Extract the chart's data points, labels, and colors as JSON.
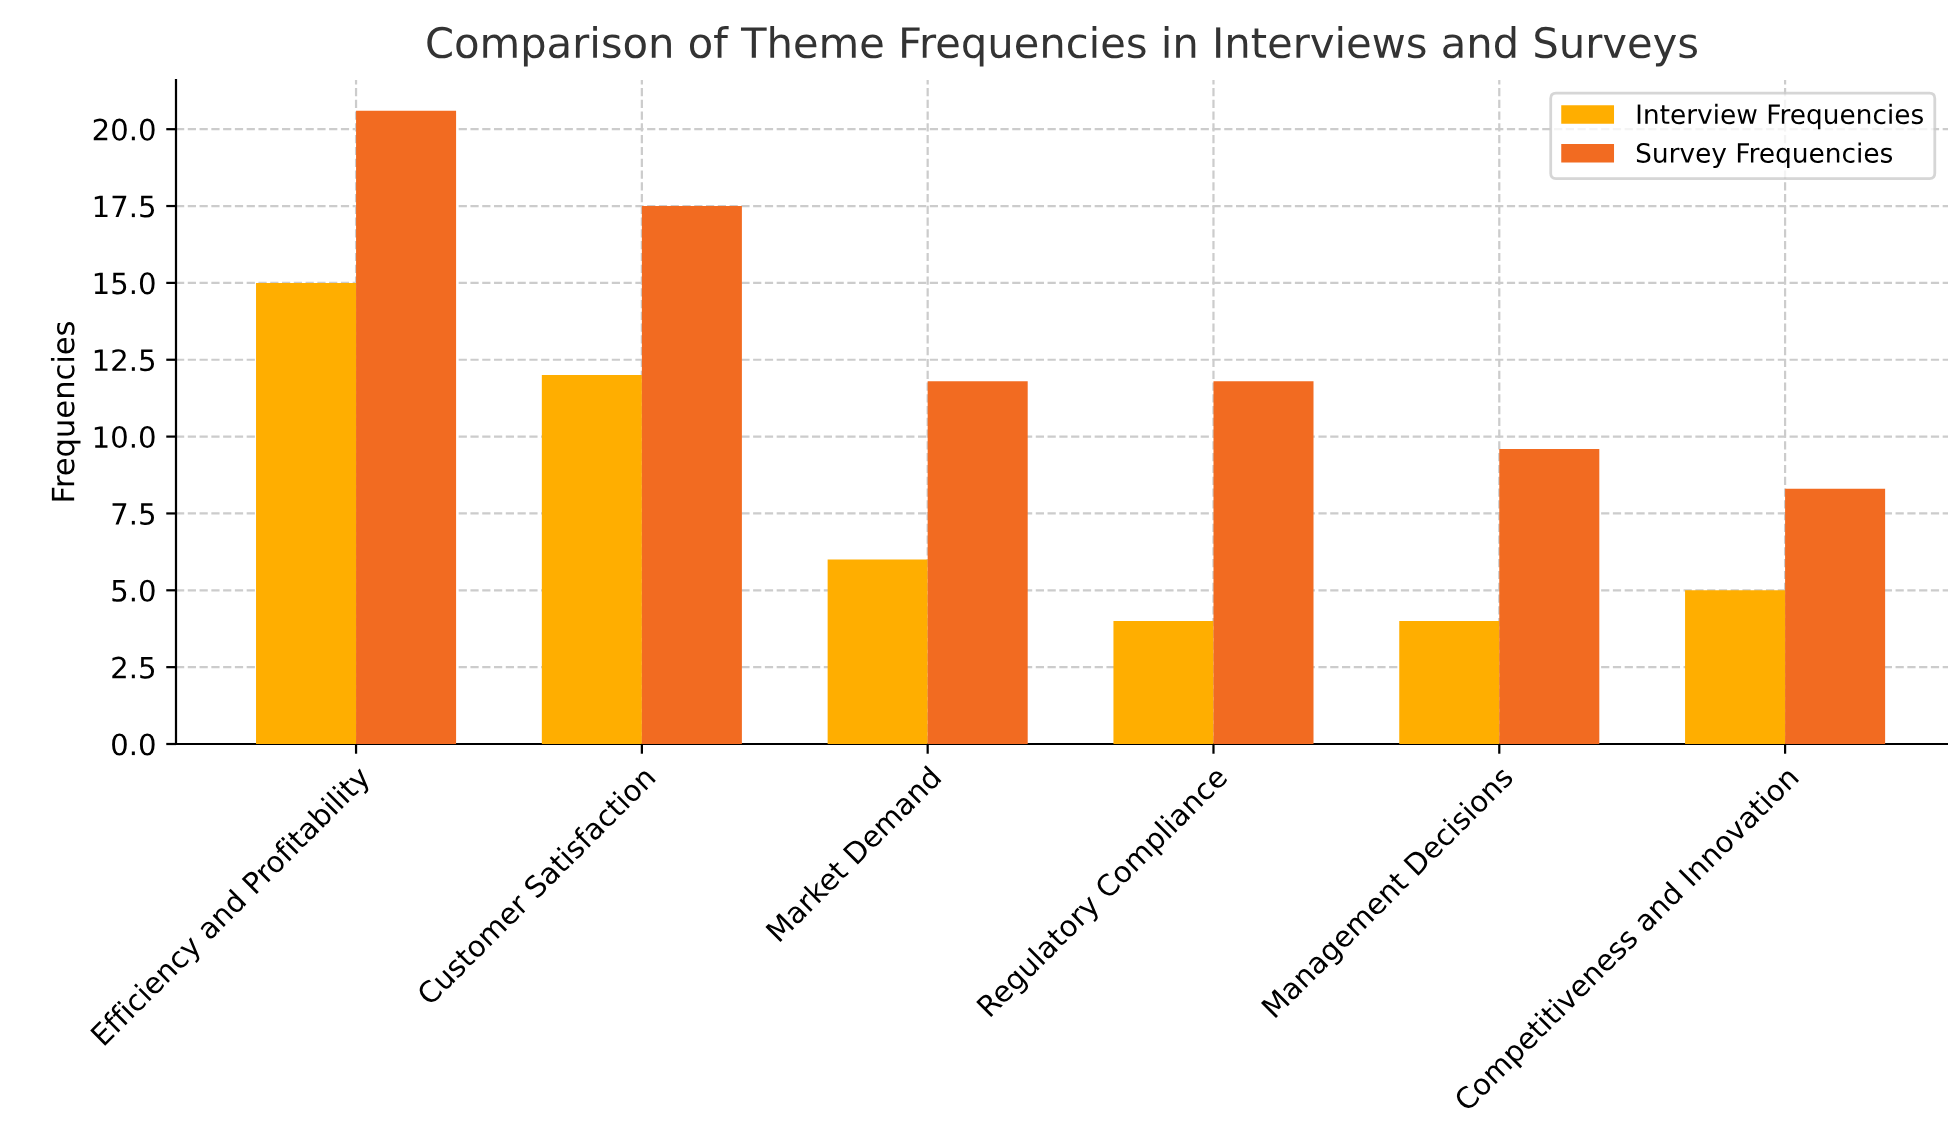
{
  "chart_data": {
    "type": "bar",
    "title": "Comparison of Theme Frequencies in Interviews and Surveys",
    "ylabel": "Frequencies",
    "categories": [
      "Efficiency and Profitability",
      "Customer Satisfaction",
      "Market Demand",
      "Regulatory Compliance",
      "Management Decisions",
      "Competitiveness and Innovation"
    ],
    "series": [
      {
        "name": "Interview Frequencies",
        "color": "#ffae00",
        "values": [
          15,
          12,
          6,
          4,
          4,
          5
        ]
      },
      {
        "name": "Survey Frequencies",
        "color": "#f26b21",
        "values": [
          20.6,
          17.5,
          11.8,
          11.8,
          9.6,
          8.3
        ]
      }
    ],
    "ylim": [
      0,
      21.6
    ],
    "yticks": [
      {
        "value": 0,
        "label": "0.0"
      },
      {
        "value": 2.5,
        "label": "2.5"
      },
      {
        "value": 5,
        "label": "5.0"
      },
      {
        "value": 7.5,
        "label": "7.5"
      },
      {
        "value": 10,
        "label": "10.0"
      },
      {
        "value": 12.5,
        "label": "12.5"
      },
      {
        "value": 15,
        "label": "15.0"
      },
      {
        "value": 17.5,
        "label": "17.5"
      },
      {
        "value": 20,
        "label": "20.0"
      }
    ],
    "grid": true,
    "legend": "top right"
  }
}
